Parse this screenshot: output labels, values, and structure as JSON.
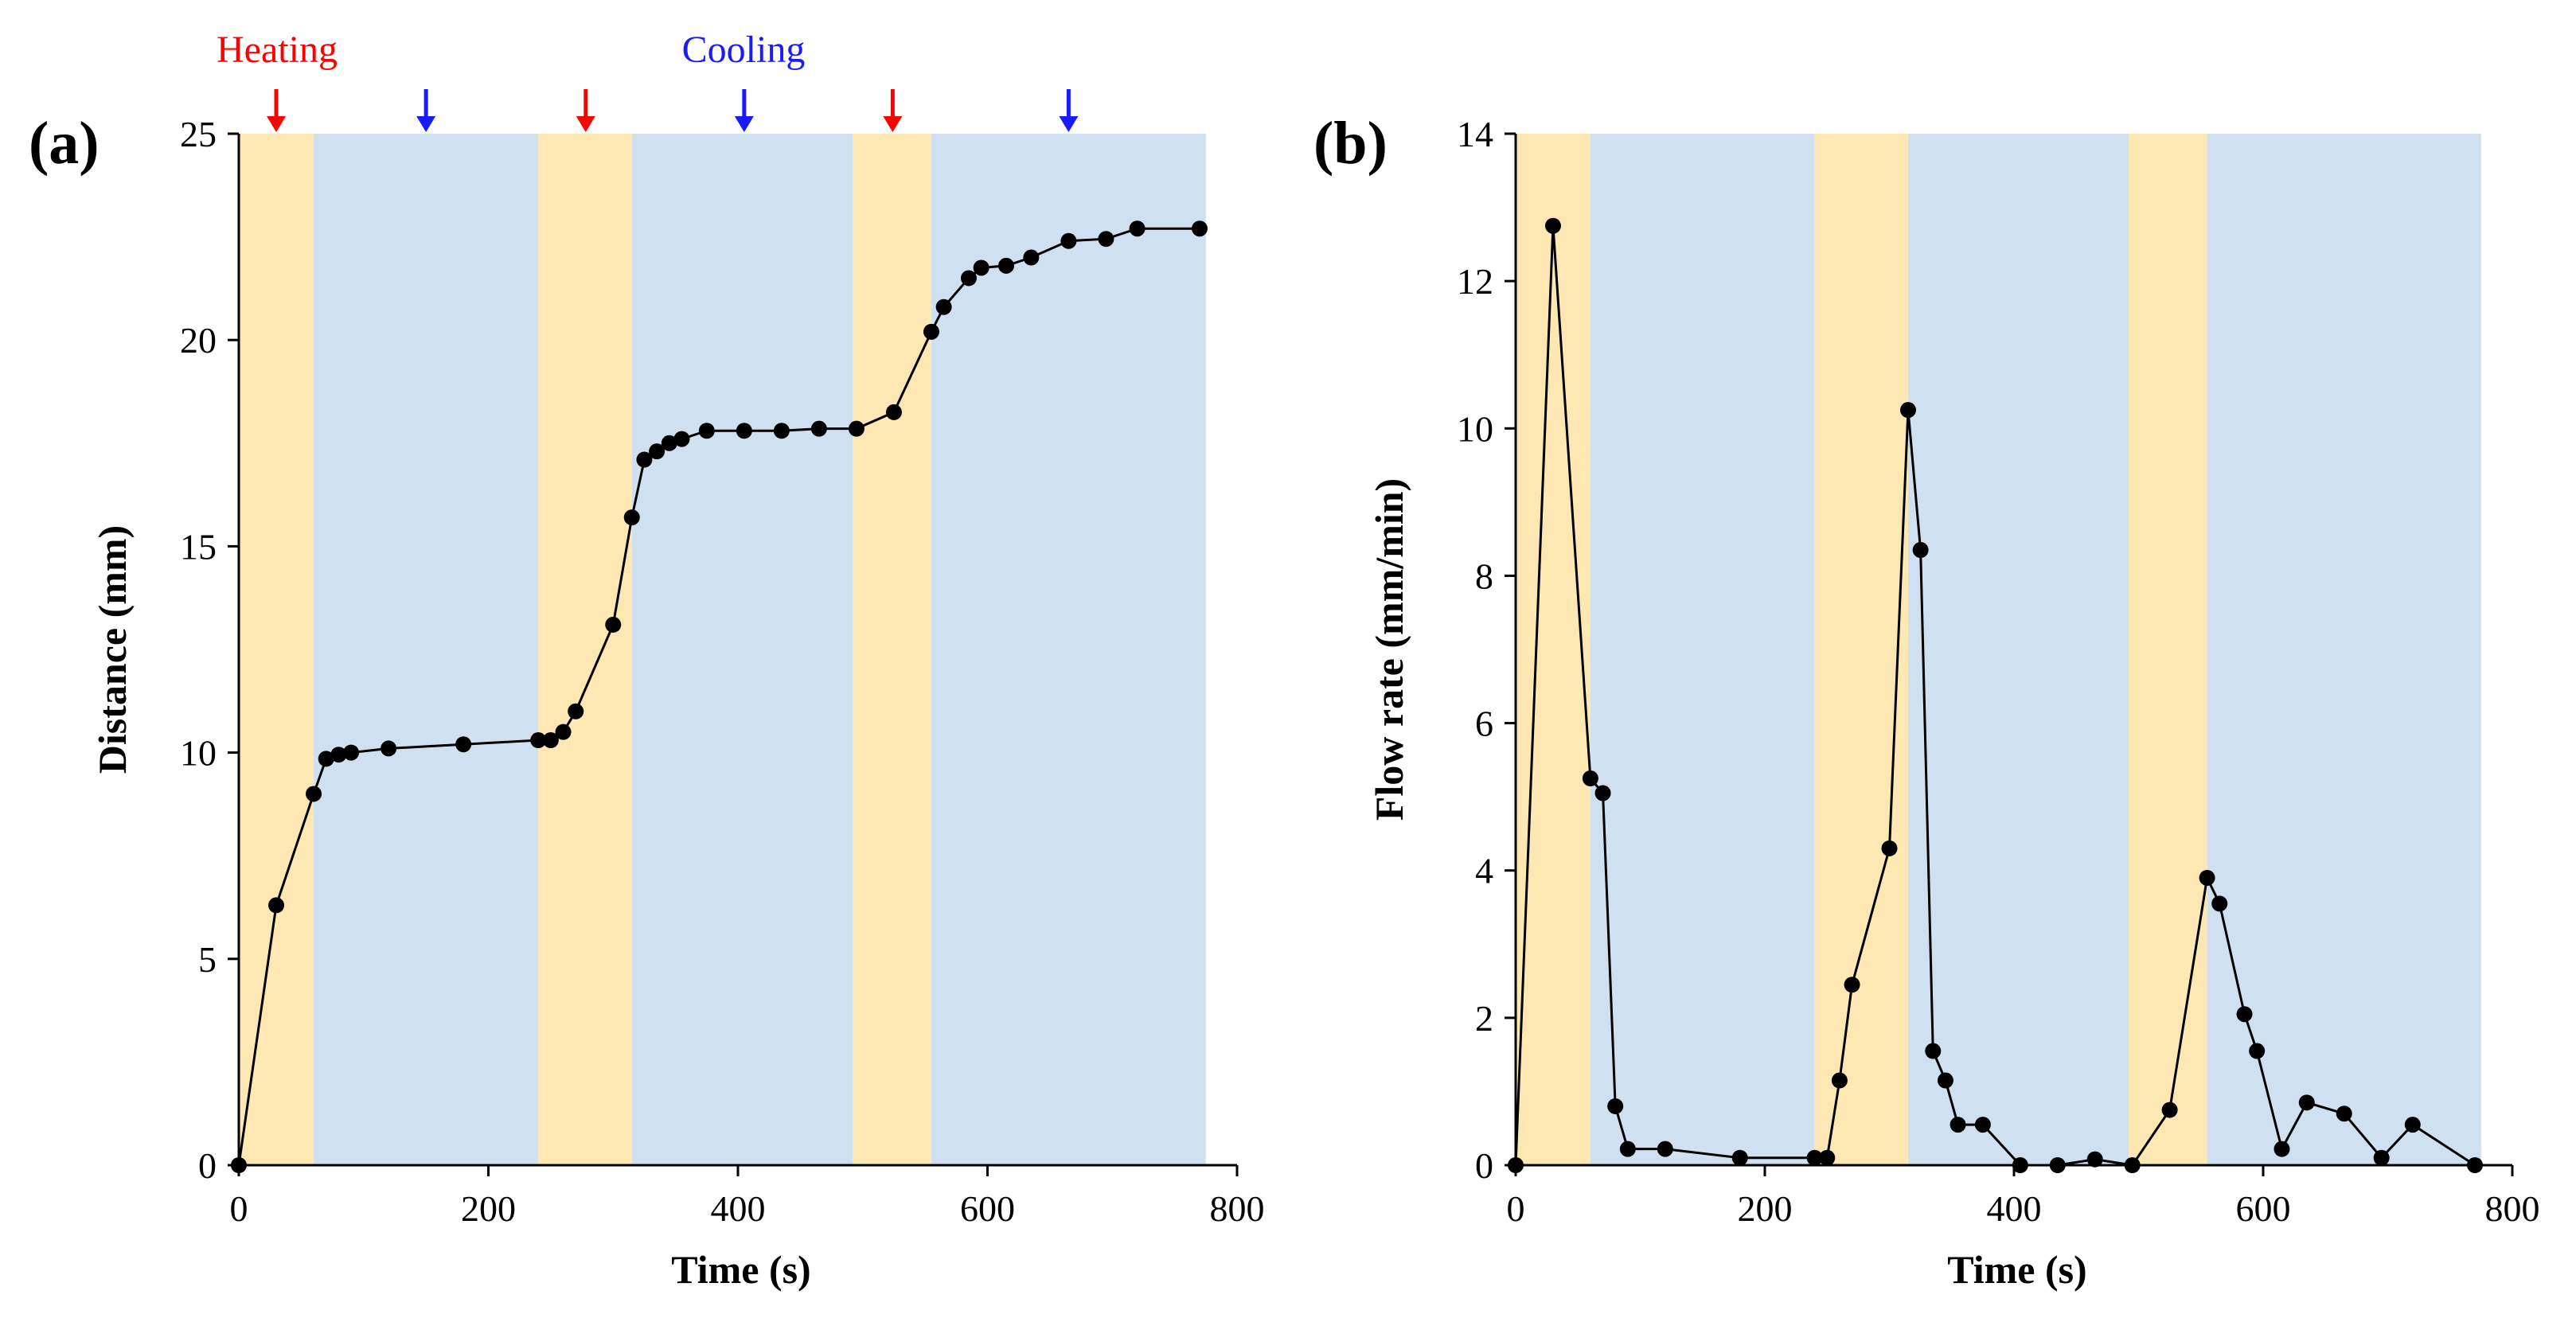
{
  "colors": {
    "heating_band": "#fde8b3",
    "cooling_band": "#cfe0f1",
    "heating_text": "#ff0000",
    "cooling_text": "#1a1aff",
    "line": "#000000"
  },
  "annotations": {
    "heating_label": "Heating",
    "cooling_label": "Cooling",
    "heating_arrow_times": [
      30,
      278,
      524
    ],
    "cooling_arrow_times": [
      150,
      405,
      665
    ]
  },
  "chart_data": [
    {
      "type": "line",
      "panel_label": "(a)",
      "title": "",
      "xlabel": "Time (s)",
      "ylabel": "Distance (mm)",
      "xlim": [
        0,
        800
      ],
      "ylim": [
        0,
        25
      ],
      "xticks": [
        0,
        200,
        400,
        600,
        800
      ],
      "yticks": [
        0,
        5,
        10,
        15,
        20,
        25
      ],
      "grid": false,
      "shaded_periods": [
        {
          "phase": "heating",
          "start": 0,
          "end": 60
        },
        {
          "phase": "cooling",
          "start": 60,
          "end": 240
        },
        {
          "phase": "heating",
          "start": 240,
          "end": 315
        },
        {
          "phase": "cooling",
          "start": 315,
          "end": 492
        },
        {
          "phase": "heating",
          "start": 492,
          "end": 555
        },
        {
          "phase": "cooling",
          "start": 555,
          "end": 775
        }
      ],
      "series": [
        {
          "name": "Distance",
          "x": [
            0,
            30,
            60,
            70,
            80,
            90,
            120,
            180,
            240,
            250,
            260,
            270,
            300,
            315,
            325,
            335,
            345,
            355,
            375,
            405,
            435,
            465,
            495,
            525,
            555,
            565,
            585,
            595,
            615,
            635,
            665,
            695,
            720,
            770
          ],
          "y": [
            0,
            6.3,
            9.0,
            9.85,
            9.95,
            10.0,
            10.1,
            10.2,
            10.3,
            10.3,
            10.5,
            11.0,
            13.1,
            15.7,
            17.1,
            17.3,
            17.5,
            17.6,
            17.8,
            17.8,
            17.8,
            17.85,
            17.85,
            18.25,
            20.2,
            20.8,
            21.5,
            21.75,
            21.8,
            22.0,
            22.4,
            22.45,
            22.7,
            22.7
          ]
        }
      ]
    },
    {
      "type": "line",
      "panel_label": "(b)",
      "title": "",
      "xlabel": "Time (s)",
      "ylabel": "Flow rate (mm/min)",
      "xlim": [
        0,
        800
      ],
      "ylim": [
        0,
        14
      ],
      "xticks": [
        0,
        200,
        400,
        600,
        800
      ],
      "yticks": [
        0,
        2,
        4,
        6,
        8,
        10,
        12,
        14
      ],
      "grid": false,
      "shaded_periods": [
        {
          "phase": "heating",
          "start": 0,
          "end": 60
        },
        {
          "phase": "cooling",
          "start": 60,
          "end": 240
        },
        {
          "phase": "heating",
          "start": 240,
          "end": 315
        },
        {
          "phase": "cooling",
          "start": 315,
          "end": 492
        },
        {
          "phase": "heating",
          "start": 492,
          "end": 555
        },
        {
          "phase": "cooling",
          "start": 555,
          "end": 775
        }
      ],
      "series": [
        {
          "name": "Flow rate",
          "x": [
            0,
            30,
            60,
            70,
            80,
            90,
            120,
            180,
            240,
            250,
            260,
            270,
            300,
            315,
            325,
            335,
            345,
            355,
            375,
            405,
            435,
            465,
            495,
            525,
            555,
            565,
            585,
            595,
            615,
            635,
            665,
            695,
            720,
            770
          ],
          "y": [
            0,
            12.75,
            5.25,
            5.05,
            0.8,
            0.22,
            0.22,
            0.1,
            0.1,
            0.1,
            1.15,
            2.45,
            4.3,
            10.25,
            8.35,
            1.55,
            1.15,
            0.55,
            0.55,
            0.0,
            0.0,
            0.08,
            0.0,
            0.75,
            3.9,
            3.55,
            2.05,
            1.55,
            0.22,
            0.85,
            0.7,
            0.1,
            0.55,
            0.0
          ]
        }
      ]
    }
  ]
}
